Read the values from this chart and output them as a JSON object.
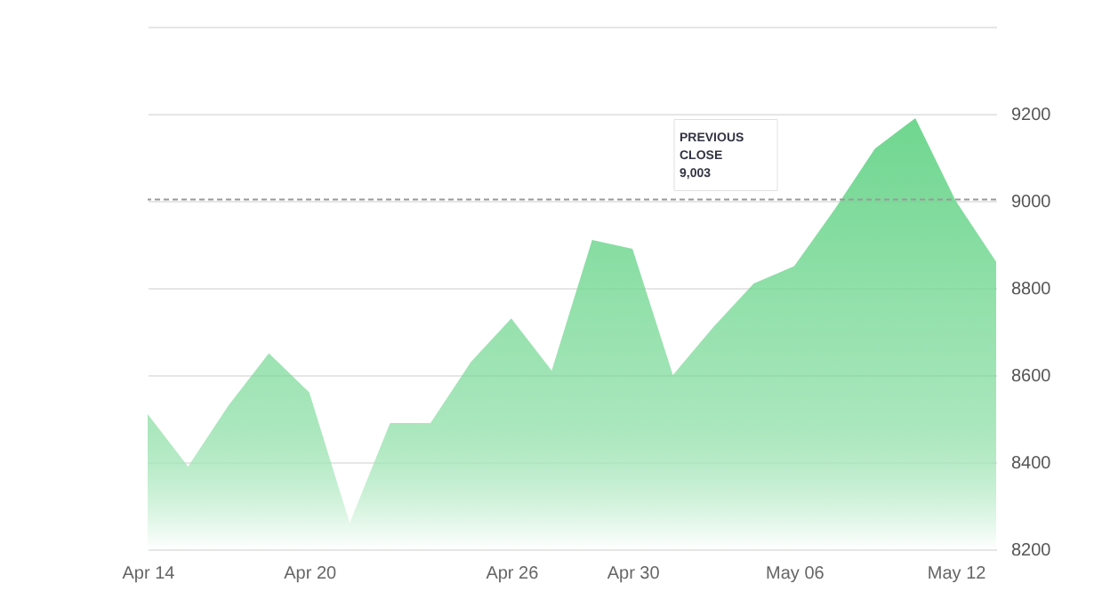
{
  "chart_data": {
    "type": "area",
    "categories": [
      "Apr 14",
      null,
      null,
      null,
      "Apr 20",
      null,
      null,
      null,
      null,
      "Apr 26",
      null,
      null,
      "Apr 30",
      null,
      null,
      null,
      "May 06",
      null,
      null,
      null,
      "May 12",
      null
    ],
    "series": [
      {
        "color": "#6fd68f",
        "values": [
          8510,
          8390,
          8530,
          8650,
          8560,
          8260,
          8490,
          8490,
          8630,
          8730,
          8610,
          8910,
          8890,
          8600,
          8710,
          8810,
          8850,
          8980,
          9120,
          9190,
          9000,
          8860
        ]
      }
    ],
    "ylim": [
      8200,
      9400
    ],
    "yticks": [
      8200,
      8400,
      8600,
      8800,
      9000,
      9200,
      {
        "value": 9400,
        "label": null
      }
    ],
    "grid": "y",
    "ref_lines": [
      {
        "axis": "y",
        "value": 9003,
        "label": "PREVIOUS CLOSE 9,003",
        "color": "#999999",
        "line_style": "dashed"
      }
    ]
  }
}
